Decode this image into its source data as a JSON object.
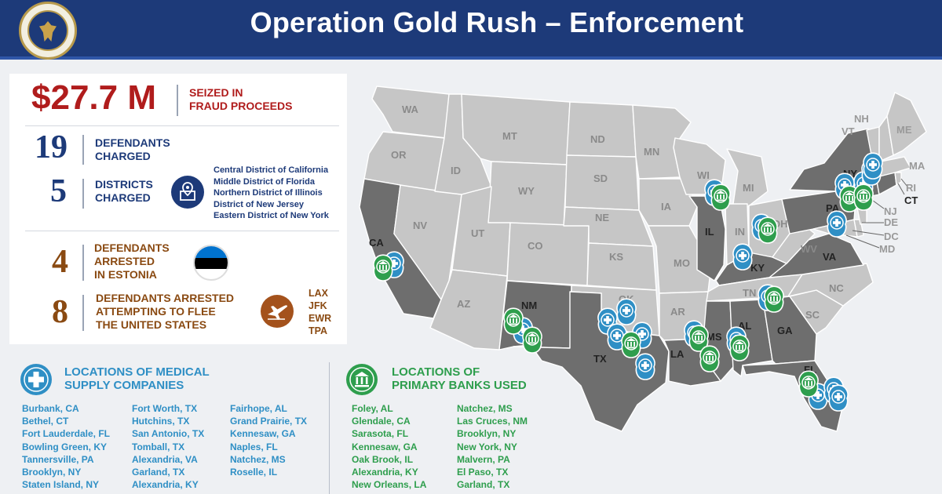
{
  "header": {
    "title": "Operation Gold Rush – Enforcement"
  },
  "stats": {
    "seized": {
      "value": "$27.7 M",
      "label_line1": "SEIZED IN",
      "label_line2": "FRAUD PROCEEDS"
    },
    "defendants": {
      "value": "19",
      "label_line1": "DEFENDANTS",
      "label_line2": "CHARGED"
    },
    "districts": {
      "value": "5",
      "label_line1": "DISTRICTS",
      "label_line2": "CHARGED",
      "list": [
        "Central District of California",
        "Middle District of Florida",
        "Northern District of Illinois",
        "District of New Jersey",
        "Eastern District of New York"
      ]
    },
    "arrested_estonia": {
      "value": "4",
      "label_line1": "DEFENDANTS",
      "label_line2": "ARRESTED",
      "label_line3": "IN ESTONIA"
    },
    "arrested_flee": {
      "value": "8",
      "label_line1": "DEFENDANTS ARRESTED",
      "label_line2": "ATTEMPTING TO FLEE",
      "label_line3": "THE UNITED STATES",
      "airports": [
        "LAX",
        "JFK",
        "EWR",
        "TPA"
      ]
    }
  },
  "map": {
    "states": [
      "WA",
      "OR",
      "CA",
      "MT",
      "ID",
      "NV",
      "WY",
      "UT",
      "AZ",
      "CO",
      "NM",
      "ND",
      "SD",
      "NE",
      "KS",
      "OK",
      "TX",
      "MN",
      "IA",
      "MO",
      "AR",
      "LA",
      "WI",
      "IL",
      "MI",
      "IN",
      "OH",
      "KY",
      "TN",
      "MS",
      "AL",
      "GA",
      "FL",
      "SC",
      "NC",
      "VA",
      "WV",
      "PA",
      "NY",
      "VT",
      "NH",
      "ME",
      "MA",
      "RI",
      "CT",
      "NJ",
      "DE",
      "DC",
      "MD"
    ]
  },
  "medical": {
    "heading_line1": "LOCATIONS OF MEDICAL",
    "heading_line2": "SUPPLY COMPANIES",
    "col1": [
      "Burbank, CA",
      "Bethel, CT",
      "Fort Lauderdale, FL",
      "Bowling Green, KY",
      "Tannersville, PA",
      "Brooklyn, NY",
      "Staten Island, NY"
    ],
    "col2": [
      "Fort Worth, TX",
      "Hutchins, TX",
      "San Antonio, TX",
      "Tomball, TX",
      "Alexandria, VA",
      "Garland, TX",
      "Alexandria, KY"
    ],
    "col3": [
      "Fairhope, AL",
      "Grand Prairie, TX",
      "Kennesaw, GA",
      "Naples, FL",
      "Natchez, MS",
      "Roselle, IL"
    ]
  },
  "banks": {
    "heading_line1": "LOCATIONS OF",
    "heading_line2": "PRIMARY BANKS USED",
    "col1": [
      "Foley, AL",
      "Glendale, CA",
      "Sarasota, FL",
      "Kennesaw, GA",
      "Oak Brook, IL",
      "Alexandria, KY",
      "New Orleans, LA"
    ],
    "col2": [
      "Natchez, MS",
      "Las Cruces, NM",
      "Brooklyn, NY",
      "New York, NY",
      "Malvern, PA",
      "El Paso, TX",
      "Garland, TX"
    ]
  },
  "colors": {
    "header_bg": "#1d3a79",
    "money_red": "#b01c1c",
    "navy": "#1d3a79",
    "brown": "#8a4a12",
    "medical_blue": "#2f8fc5",
    "bank_green": "#2e9e4d",
    "state_dark": "#6e6e6e",
    "state_light": "#c6c6c6"
  }
}
